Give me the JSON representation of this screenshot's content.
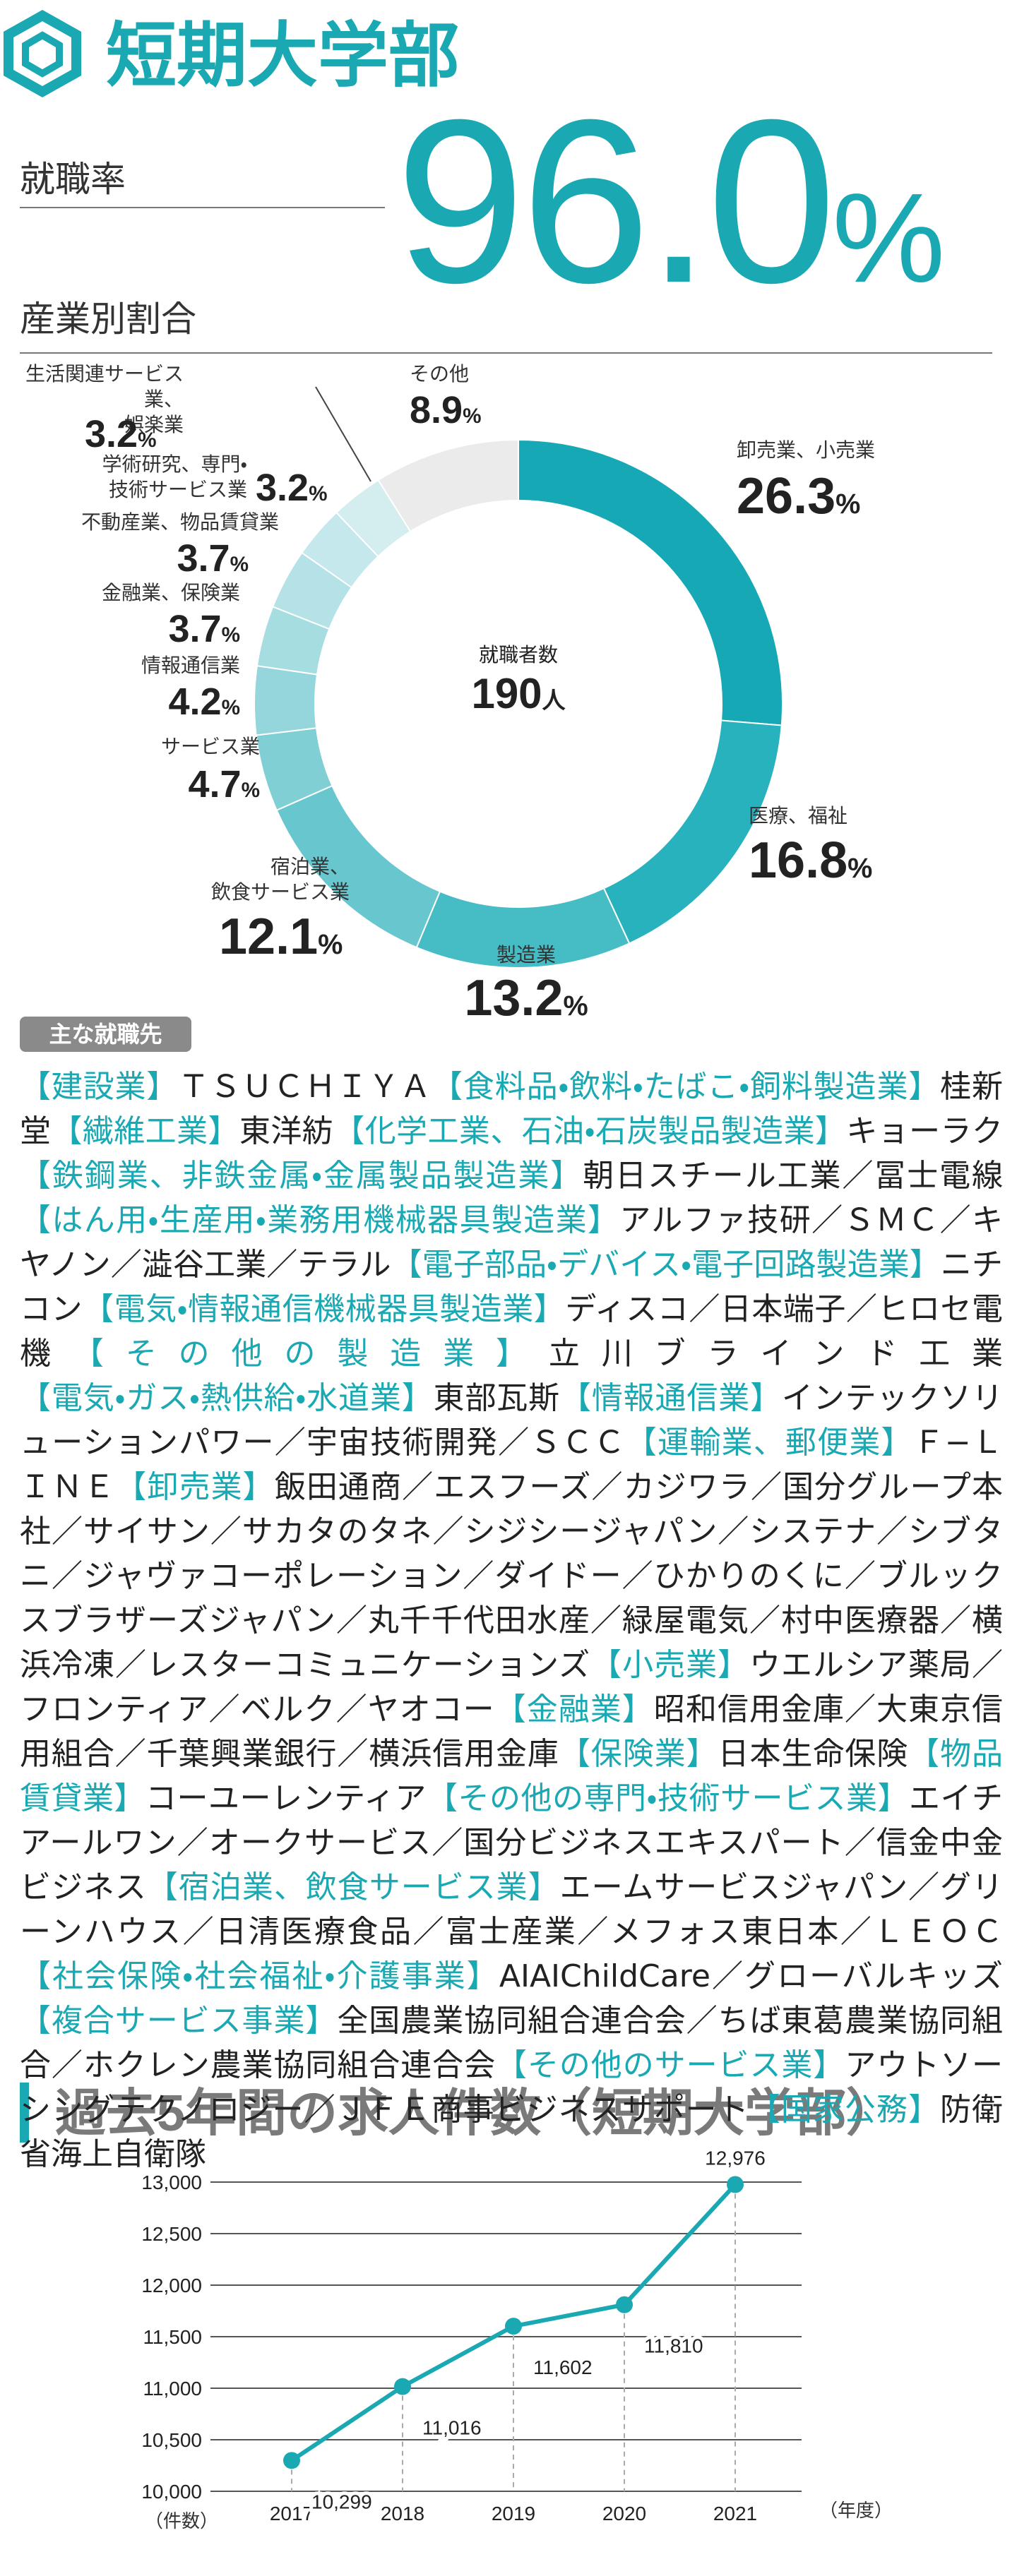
{
  "header": {
    "title": "短期大学部"
  },
  "employment": {
    "label": "就職率",
    "rate": "96.0",
    "unit": "%"
  },
  "chart_data": [
    {
      "type": "donut",
      "title": "産業別割合",
      "center_label": "就職者数",
      "total": 190,
      "total_unit": "人",
      "unit": "%",
      "categories": [
        "卸売業、小売業",
        "医療、福祉",
        "製造業",
        "宿泊業、\n飲食サービス業",
        "サービス業",
        "情報通信業",
        "金融業、保険業",
        "不動産業、物品賃貸業",
        "学術研究、専門・\n技術サービス業",
        "生活関連サービス業、\n娯楽業",
        "その他"
      ],
      "values": [
        26.3,
        16.8,
        13.2,
        12.1,
        4.7,
        4.2,
        3.7,
        3.7,
        3.2,
        3.2,
        8.9
      ],
      "colors": [
        "#16a8b4",
        "#28b2bd",
        "#46bcc5",
        "#68c7ce",
        "#80cfd5",
        "#94d6db",
        "#a6dde1",
        "#b5e2e6",
        "#c4e8eb",
        "#d4eef0",
        "#ebebeb"
      ]
    },
    {
      "type": "line",
      "title": "過去5年間の求人件数（短期大学部）",
      "categories": [
        "2017",
        "2018",
        "2019",
        "2020",
        "2021"
      ],
      "values": [
        10299,
        11016,
        11602,
        11810,
        12976
      ],
      "value_labels": [
        "10,299",
        "11,016",
        "11,602",
        "11,810",
        "12,976"
      ],
      "color": "#1aa9b3",
      "ylim": [
        10000,
        13000
      ],
      "yticks": [
        {
          "value": 10000,
          "label": "10,000"
        },
        {
          "value": 10500,
          "label": "10,500"
        },
        {
          "value": 11000,
          "label": "11,000"
        },
        {
          "value": 11500,
          "label": "11,500"
        },
        {
          "value": 12000,
          "label": "12,000"
        },
        {
          "value": 12500,
          "label": "12,500"
        },
        {
          "value": 13000,
          "label": "13,000"
        }
      ],
      "y_axis_label": "（件数）",
      "x_axis_label": "（年度）",
      "grid": true
    }
  ],
  "employers": {
    "tag": "主な就職先",
    "items": [
      {
        "category": "【建設業】",
        "companies": "ＴＳＵＣＨＩＹＡ"
      },
      {
        "category": "【食料品・飲料・たばこ・飼料製造業】",
        "companies": "桂新堂"
      },
      {
        "category": "【繊維工業】",
        "companies": "東洋紡"
      },
      {
        "category": "【化学工業、石油・石炭製品製造業】",
        "companies": "キョーラク"
      },
      {
        "category": "【鉄鋼業、非鉄金属・金属製品製造業】",
        "companies": "朝日スチール工業／冨士電線"
      },
      {
        "category": "【はん用・生産用・業務用機械器具製造業】",
        "companies": "アルファ技研／ＳＭＣ／キヤノン／澁谷工業／テラル"
      },
      {
        "category": "【電子部品・デバイス・電子回路製造業】",
        "companies": "ニチコン"
      },
      {
        "category": "【電気・情報通信機械器具製造業】",
        "companies": "ディスコ／日本端子／ヒロセ電機"
      },
      {
        "category": "【その他の製造業】",
        "companies": "立川ブラインド工業"
      },
      {
        "category": "【電気・ガス・熱供給・水道業】",
        "companies": "東部瓦斯"
      },
      {
        "category": "【情報通信業】",
        "companies": "インテックソリューションパワー／宇宙技術開発／ＳＣＣ"
      },
      {
        "category": "【運輸業、郵便業】",
        "companies": "Ｆ−ＬＩＮＥ"
      },
      {
        "category": "【卸売業】",
        "companies": "飯田通商／エスフーズ／カジワラ／国分グループ本社／サイサン／サカタのタネ／シジシージャパン／システナ／シブタニ／ジャヴァコーポレーション／ダイドー／ひかりのくに／ブルックスブラザーズジャパン／丸千千代田水産／緑屋電気／村中医療器／横浜冷凍／レスターコミュニケーションズ"
      },
      {
        "category": "【小売業】",
        "companies": "ウエルシア薬局／フロンティア／ベルク／ヤオコー"
      },
      {
        "category": "【金融業】",
        "companies": "昭和信用金庫／大東京信用組合／千葉興業銀行／横浜信用金庫"
      },
      {
        "category": "【保険業】",
        "companies": "日本生命保険"
      },
      {
        "category": "【物品賃貸業】",
        "companies": "コーユーレンティア"
      },
      {
        "category": "【その他の専門・技術サービス業】",
        "companies": "エイチアールワン／オークサービス／国分ビジネスエキスパート／信金中金ビジネス"
      },
      {
        "category": "【宿泊業、飲食サービス業】",
        "companies": "エームサービスジャパン／グリーンハウス／日清医療食品／富士産業／メフォス東日本／ＬＥＯＣ"
      },
      {
        "category": "【社会保険・社会福祉・介護事業】",
        "companies": "AIAIChildCare／グローバルキッズ"
      },
      {
        "category": "【複合サービス事業】",
        "companies": "全国農業協同組合連合会／ちば東葛農業協同組合／ホクレン農業協同組合連合会"
      },
      {
        "category": "【その他のサービス業】",
        "companies": "アウトソーシングテクノロジー／ＪＦＥ商事ビジネスサポート"
      },
      {
        "category": "【国家公務】",
        "companies": "防衛省海上自衛隊"
      }
    ]
  }
}
